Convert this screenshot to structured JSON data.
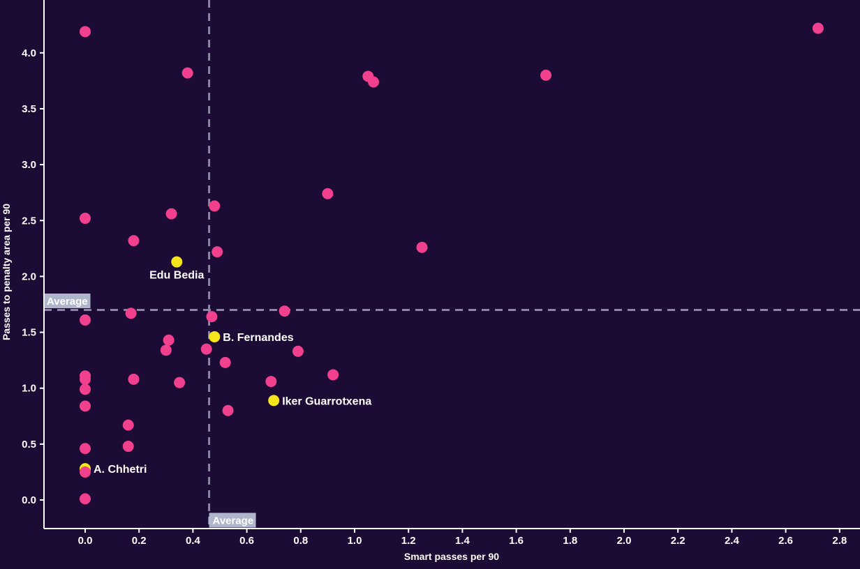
{
  "chart_data": {
    "type": "scatter",
    "title": "",
    "xlabel": "Smart passes per 90",
    "ylabel": "Passes to penalty area per 90",
    "xlim": [
      -0.15,
      2.88
    ],
    "ylim": [
      -0.25,
      4.47
    ],
    "grid": false,
    "x_ticks": [
      0.0,
      0.2,
      0.4,
      0.6,
      0.8,
      1.0,
      1.2,
      1.4,
      1.6,
      1.8,
      2.0,
      2.2,
      2.4,
      2.6,
      2.8
    ],
    "y_ticks": [
      0.0,
      0.5,
      1.0,
      1.5,
      2.0,
      2.5,
      3.0,
      3.5,
      4.0
    ],
    "average_x": 0.46,
    "average_y": 1.7,
    "average_label_x": "Average",
    "average_label_y": "Average",
    "colors": {
      "background": "#1c0b34",
      "point": "#f0408e",
      "highlight_point": "#f5e51d",
      "axis": "#ffffff",
      "tick_text": "#ffffff",
      "dashed_line": "#8b86a2",
      "average_label_bg": "#c9d5e6",
      "average_label_text": "#ffffff",
      "player_label_text": "#ffffff"
    },
    "series": [
      {
        "name": "players",
        "points": [
          {
            "x": 0.0,
            "y": 4.19,
            "color": "pink"
          },
          {
            "x": 0.38,
            "y": 3.82,
            "color": "pink"
          },
          {
            "x": 1.05,
            "y": 3.79,
            "color": "pink"
          },
          {
            "x": 1.07,
            "y": 3.74,
            "color": "pink"
          },
          {
            "x": 1.71,
            "y": 3.8,
            "color": "pink"
          },
          {
            "x": 2.72,
            "y": 4.22,
            "color": "pink"
          },
          {
            "x": 0.9,
            "y": 2.74,
            "color": "pink"
          },
          {
            "x": 0.0,
            "y": 2.52,
            "color": "pink"
          },
          {
            "x": 0.32,
            "y": 2.56,
            "color": "pink"
          },
          {
            "x": 0.48,
            "y": 2.63,
            "color": "pink"
          },
          {
            "x": 0.18,
            "y": 2.32,
            "color": "pink"
          },
          {
            "x": 0.49,
            "y": 2.22,
            "color": "pink"
          },
          {
            "x": 1.25,
            "y": 2.26,
            "color": "pink"
          },
          {
            "x": 0.17,
            "y": 1.67,
            "color": "pink"
          },
          {
            "x": 0.0,
            "y": 1.61,
            "color": "pink"
          },
          {
            "x": 0.47,
            "y": 1.64,
            "color": "pink"
          },
          {
            "x": 0.74,
            "y": 1.69,
            "color": "pink"
          },
          {
            "x": 0.31,
            "y": 1.43,
            "color": "pink"
          },
          {
            "x": 0.3,
            "y": 1.34,
            "color": "pink"
          },
          {
            "x": 0.45,
            "y": 1.35,
            "color": "pink"
          },
          {
            "x": 0.52,
            "y": 1.23,
            "color": "pink"
          },
          {
            "x": 0.79,
            "y": 1.33,
            "color": "pink"
          },
          {
            "x": 0.92,
            "y": 1.12,
            "color": "pink"
          },
          {
            "x": 0.0,
            "y": 1.11,
            "color": "pink"
          },
          {
            "x": 0.0,
            "y": 1.08,
            "color": "pink"
          },
          {
            "x": 0.18,
            "y": 1.08,
            "color": "pink"
          },
          {
            "x": 0.35,
            "y": 1.05,
            "color": "pink"
          },
          {
            "x": 0.69,
            "y": 1.06,
            "color": "pink"
          },
          {
            "x": 0.0,
            "y": 0.99,
            "color": "pink"
          },
          {
            "x": 0.0,
            "y": 0.84,
            "color": "pink"
          },
          {
            "x": 0.53,
            "y": 0.8,
            "color": "pink"
          },
          {
            "x": 0.16,
            "y": 0.67,
            "color": "pink"
          },
          {
            "x": 0.0,
            "y": 0.46,
            "color": "pink"
          },
          {
            "x": 0.16,
            "y": 0.48,
            "color": "pink"
          },
          {
            "x": 0.0,
            "y": 0.01,
            "color": "pink"
          },
          {
            "x": 0.0,
            "y": 0.28,
            "color": "yellow",
            "label": "A. Chhetri",
            "label_pos": "right"
          },
          {
            "x": 0.0,
            "y": 0.25,
            "color": "pink"
          },
          {
            "x": 0.34,
            "y": 2.13,
            "color": "yellow",
            "label": "Edu Bedia",
            "label_pos": "below"
          },
          {
            "x": 0.48,
            "y": 1.46,
            "color": "yellow",
            "label": "B. Fernandes",
            "label_pos": "right"
          },
          {
            "x": 0.7,
            "y": 0.89,
            "color": "yellow",
            "label": "Iker Guarrotxena",
            "label_pos": "right"
          }
        ]
      }
    ]
  }
}
